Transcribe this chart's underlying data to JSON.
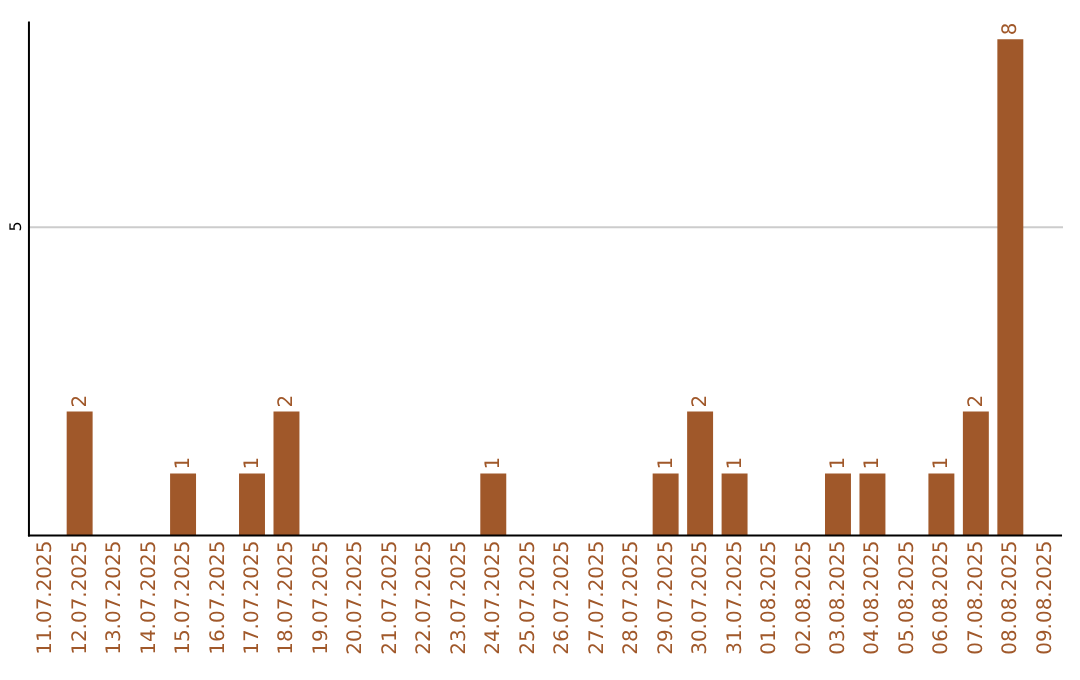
{
  "chart_data": {
    "type": "bar",
    "categories": [
      "11.07.2025",
      "12.07.2025",
      "13.07.2025",
      "14.07.2025",
      "15.07.2025",
      "16.07.2025",
      "17.07.2025",
      "18.07.2025",
      "19.07.2025",
      "20.07.2025",
      "21.07.2025",
      "22.07.2025",
      "23.07.2025",
      "24.07.2025",
      "25.07.2025",
      "26.07.2025",
      "27.07.2025",
      "28.07.2025",
      "29.07.2025",
      "30.07.2025",
      "31.07.2025",
      "01.08.2025",
      "02.08.2025",
      "03.08.2025",
      "04.08.2025",
      "05.08.2025",
      "06.08.2025",
      "07.08.2025",
      "08.08.2025",
      "09.08.2025"
    ],
    "values": [
      0,
      2,
      0,
      0,
      1,
      0,
      1,
      2,
      0,
      0,
      0,
      0,
      0,
      1,
      0,
      0,
      0,
      0,
      1,
      2,
      1,
      0,
      0,
      1,
      1,
      0,
      1,
      2,
      8,
      0
    ],
    "value_labels": [
      null,
      "2",
      null,
      null,
      "1",
      null,
      "1",
      "2",
      null,
      null,
      null,
      null,
      null,
      "1",
      null,
      null,
      null,
      null,
      "1",
      "2",
      "1",
      null,
      null,
      "1",
      "1",
      null,
      "1",
      "2",
      "8",
      null
    ],
    "color": "#a0582a",
    "ylim": [
      0,
      8.3
    ],
    "yticks": [
      5
    ],
    "grid": "y"
  }
}
